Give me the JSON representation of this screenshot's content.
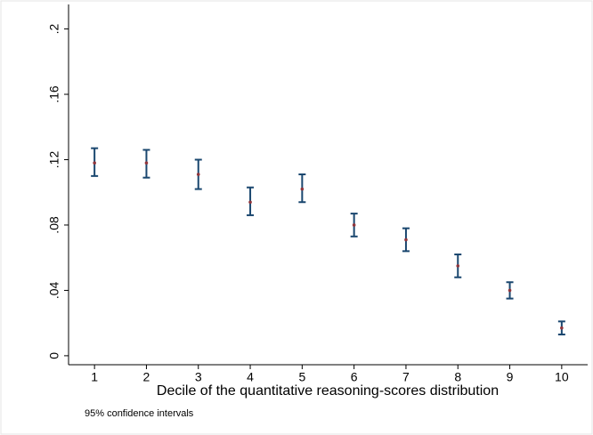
{
  "chart_data": {
    "type": "errorbar",
    "x": [
      1,
      2,
      3,
      4,
      5,
      6,
      7,
      8,
      9,
      10
    ],
    "values": [
      0.118,
      0.118,
      0.111,
      0.094,
      0.102,
      0.08,
      0.071,
      0.055,
      0.04,
      0.017
    ],
    "lower": [
      0.11,
      0.109,
      0.102,
      0.086,
      0.094,
      0.073,
      0.064,
      0.048,
      0.035,
      0.013
    ],
    "upper": [
      0.127,
      0.126,
      0.12,
      0.103,
      0.111,
      0.087,
      0.078,
      0.062,
      0.045,
      0.021
    ],
    "point_color": "#90353b",
    "bar_color": "#1a476f",
    "xlim": [
      0.5,
      10.5
    ],
    "xticks": [
      1,
      2,
      3,
      4,
      5,
      6,
      7,
      8,
      9,
      10
    ],
    "ylim": [
      -0.0055,
      0.215
    ],
    "yticks": [
      0,
      {
        "value": 0.04,
        "label": ".04"
      },
      {
        "value": 0.08,
        "label": ".08"
      },
      {
        "value": 0.12,
        "label": ".12"
      },
      {
        "value": 0.16,
        "label": ".16"
      },
      {
        "value": 0.2,
        "label": ".2"
      }
    ],
    "x_label": "Decile of the quantitative reasoning-scores distribution",
    "note": "95% confidence intervals"
  }
}
